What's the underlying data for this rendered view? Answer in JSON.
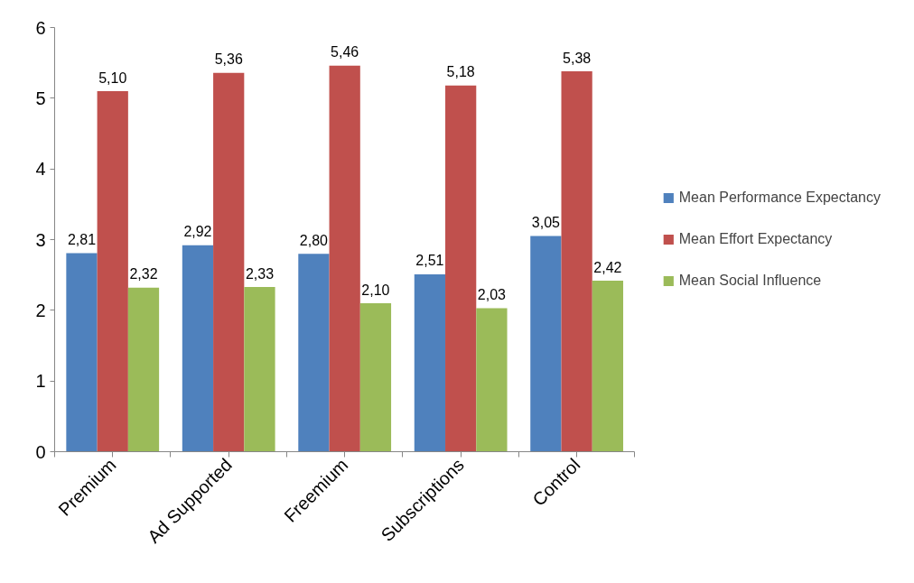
{
  "chart_data": {
    "type": "bar",
    "categories": [
      "Premium",
      "Ad Supported",
      "Freemium",
      "Subscriptions",
      "Control"
    ],
    "series": [
      {
        "name": "Mean Performance Expectancy",
        "color": "#4f81bd",
        "values": [
          2.81,
          2.92,
          2.8,
          2.51,
          3.05
        ],
        "value_labels": [
          "2,81",
          "2,92",
          "2,80",
          "2,51",
          "3,05"
        ]
      },
      {
        "name": "Mean Effort Expectancy",
        "color": "#c0504d",
        "values": [
          5.1,
          5.36,
          5.46,
          5.18,
          5.38
        ],
        "value_labels": [
          "5,10",
          "5,36",
          "5,46",
          "5,18",
          "5,38"
        ]
      },
      {
        "name": "Mean Social Influence",
        "color": "#9bbb59",
        "values": [
          2.32,
          2.33,
          2.1,
          2.03,
          2.42
        ],
        "value_labels": [
          "2,32",
          "2,33",
          "2,10",
          "2,03",
          "2,42"
        ]
      }
    ],
    "ylim": [
      0,
      6
    ],
    "yticks": [
      0,
      1,
      2,
      3,
      4,
      5,
      6
    ],
    "grid": false,
    "legend": "right"
  }
}
